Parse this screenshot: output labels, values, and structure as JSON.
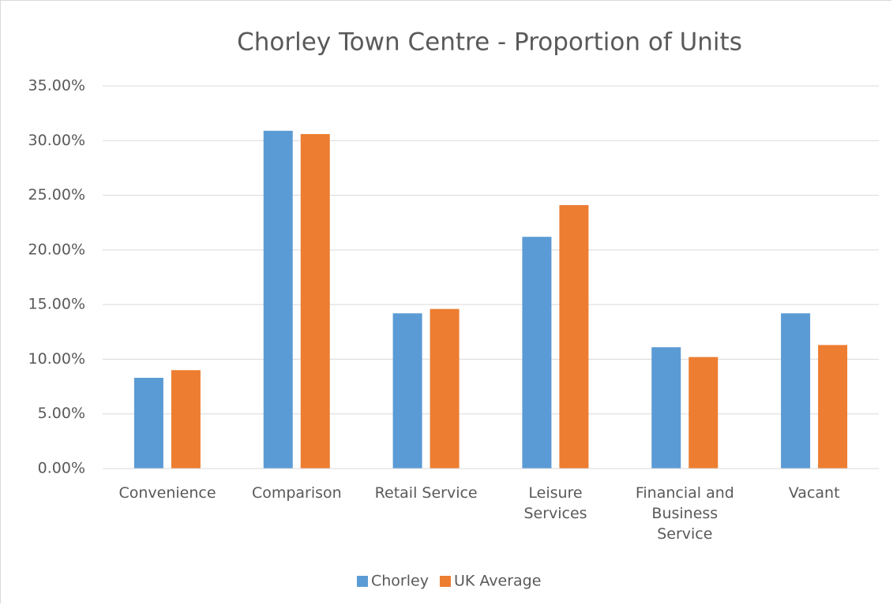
{
  "chart_data": {
    "type": "bar",
    "title": "Chorley Town Centre - Proportion of Units",
    "categories": [
      "Convenience",
      "Comparison",
      "Retail Service",
      "Leisure\nServices",
      "Financial and\nBusiness\nService",
      "Vacant"
    ],
    "series": [
      {
        "name": "Chorley",
        "color": "#5b9bd5",
        "values": [
          8.3,
          30.9,
          14.2,
          21.2,
          11.1,
          14.2
        ]
      },
      {
        "name": "UK Average",
        "color": "#ed7d31",
        "values": [
          9.0,
          30.6,
          14.6,
          24.1,
          10.2,
          11.3
        ]
      }
    ],
    "ylim": [
      0,
      35
    ],
    "yticks": [
      {
        "value": 0,
        "label": "0.00%"
      },
      {
        "value": 5,
        "label": "5.00%"
      },
      {
        "value": 10,
        "label": "10.00%"
      },
      {
        "value": 15,
        "label": "15.00%"
      },
      {
        "value": 20,
        "label": "20.00%"
      },
      {
        "value": 25,
        "label": "25.00%"
      },
      {
        "value": 30,
        "label": "30.00%"
      },
      {
        "value": 35,
        "label": "35.00%"
      }
    ],
    "grid": true,
    "legend": "bottom"
  }
}
